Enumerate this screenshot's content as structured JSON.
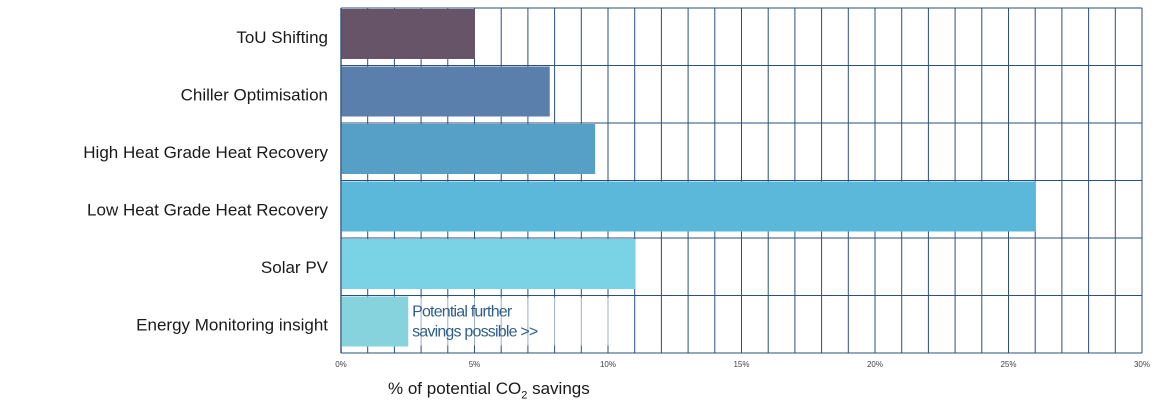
{
  "chart_data": {
    "type": "bar",
    "orientation": "horizontal",
    "categories": [
      "ToU Shifting",
      "Chiller Optimisation",
      "High Heat Grade Heat Recovery",
      "Low Heat Grade Heat Recovery",
      "Solar PV",
      "Energy Monitoring insight"
    ],
    "values": [
      5.0,
      7.8,
      9.5,
      26.0,
      11.0,
      2.5
    ],
    "bar_colors": [
      "#675468",
      "#5a7fad",
      "#56a0c8",
      "#5bb8db",
      "#7ad3e5",
      "#86d3de"
    ],
    "xlim": [
      0,
      30
    ],
    "x_ticks": [
      "0%",
      "5%",
      "10%",
      "15%",
      "20%",
      "25%",
      "30%"
    ],
    "xlabel": {
      "prefix": "% of potential CO",
      "subscript": "2",
      "suffix": " savings"
    },
    "grid": true,
    "grid_color": "#2b4f7e",
    "annotation": {
      "lines": [
        "Potential further",
        "savings possible >>"
      ],
      "category": "Energy Monitoring insight"
    }
  }
}
